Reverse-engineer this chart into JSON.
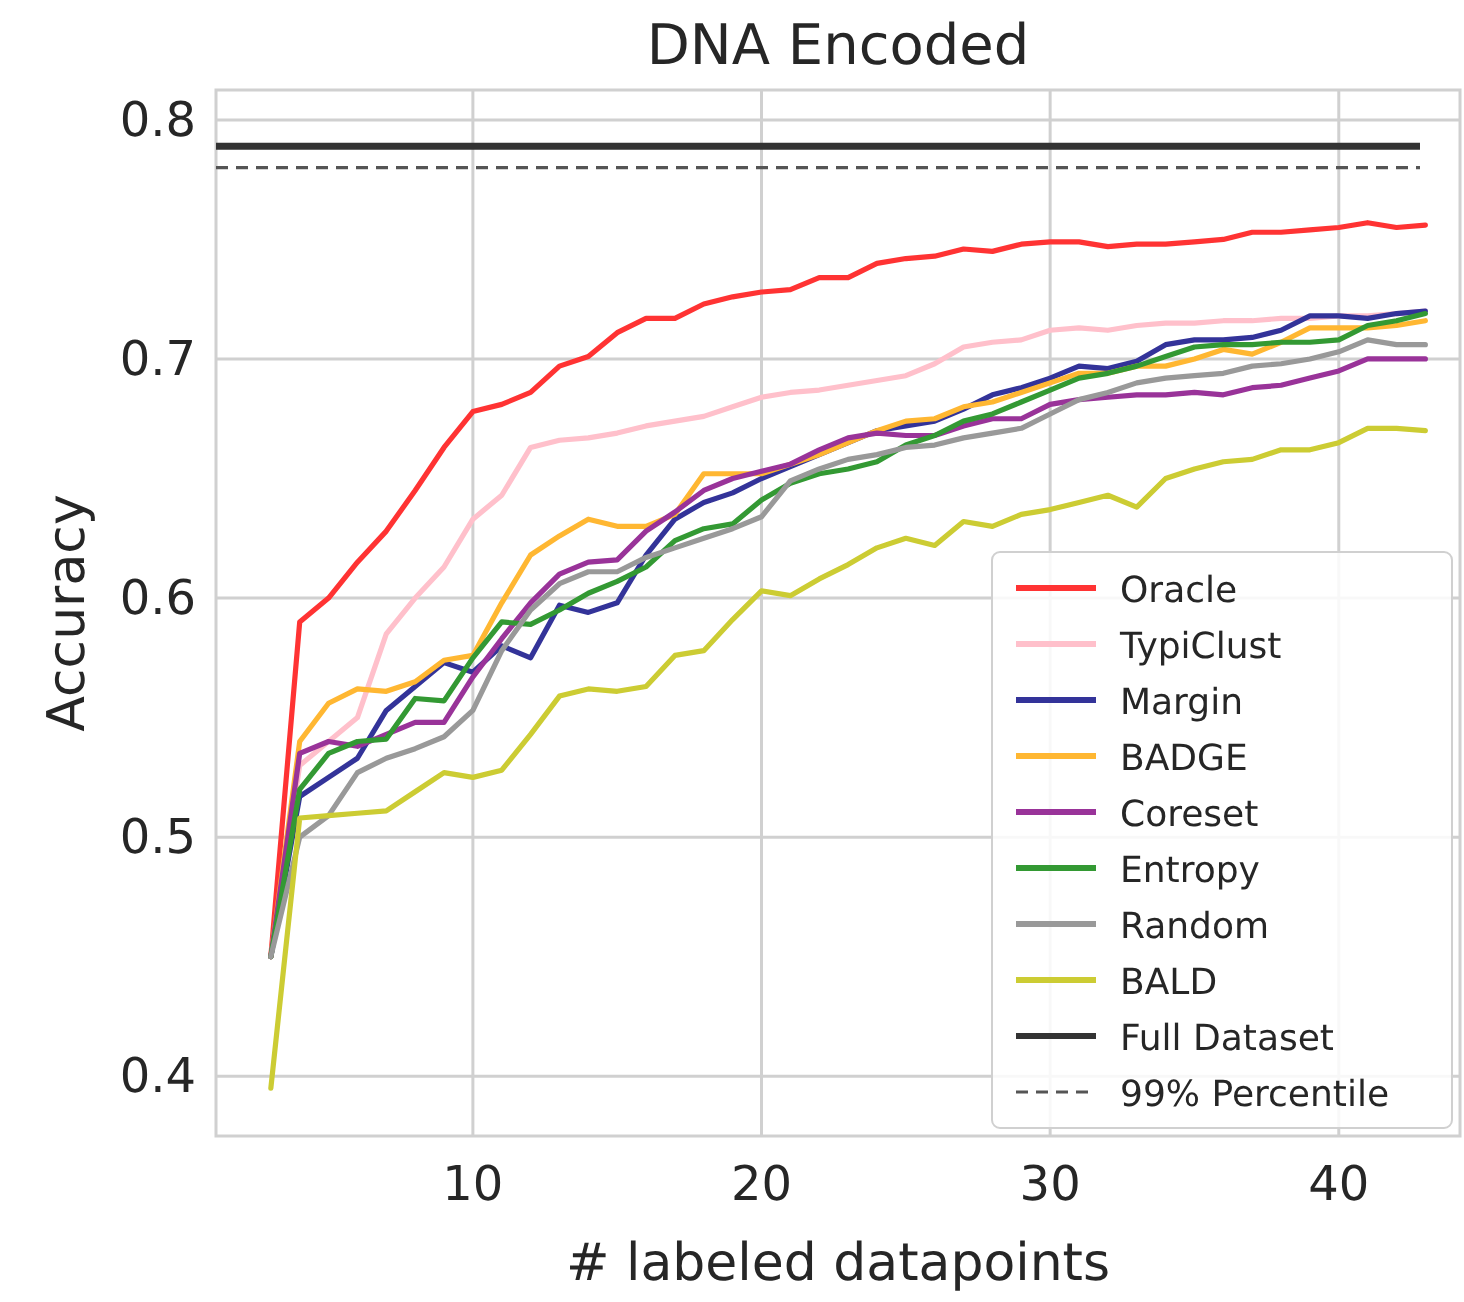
{
  "chart_data": {
    "type": "line",
    "title": "DNA Encoded",
    "xlabel": "# labeled datapoints",
    "ylabel": "Accuracy",
    "x": [
      3,
      4,
      5,
      6,
      7,
      8,
      9,
      10,
      11,
      12,
      13,
      14,
      15,
      16,
      17,
      18,
      19,
      20,
      21,
      22,
      23,
      24,
      25,
      26,
      27,
      28,
      29,
      30,
      31,
      32,
      33,
      34,
      35,
      36,
      37,
      38,
      39,
      40,
      41,
      42,
      43
    ],
    "xlim": [
      1.1,
      44.2
    ],
    "xticks": [
      10,
      20,
      30,
      40
    ],
    "ylim": [
      0.375,
      0.8125
    ],
    "yticks": [
      0.4,
      0.5,
      0.6,
      0.7,
      0.8
    ],
    "grid": true,
    "legend": "bottom right",
    "line_style": "solid",
    "marker": "none",
    "series": [
      {
        "name": "Oracle",
        "color": "#ff3333",
        "values": [
          0.45,
          0.59,
          0.6,
          0.615,
          0.628,
          0.645,
          0.663,
          0.678,
          0.681,
          0.686,
          0.697,
          0.701,
          0.711,
          0.717,
          0.717,
          0.723,
          0.726,
          0.728,
          0.729,
          0.734,
          0.734,
          0.74,
          0.742,
          0.743,
          0.746,
          0.745,
          0.748,
          0.749,
          0.749,
          0.747,
          0.748,
          0.748,
          0.749,
          0.75,
          0.753,
          0.753,
          0.754,
          0.755,
          0.757,
          0.755,
          0.756
        ]
      },
      {
        "name": "TypiClust",
        "color": "#ffc0cb",
        "values": [
          0.45,
          0.53,
          0.54,
          0.55,
          0.585,
          0.6,
          0.613,
          0.633,
          0.643,
          0.663,
          0.666,
          0.667,
          0.669,
          0.672,
          0.674,
          0.676,
          0.68,
          0.684,
          0.686,
          0.687,
          0.689,
          0.691,
          0.693,
          0.698,
          0.705,
          0.707,
          0.708,
          0.712,
          0.713,
          0.712,
          0.714,
          0.715,
          0.715,
          0.716,
          0.716,
          0.717,
          0.717,
          0.718,
          0.718,
          0.719,
          0.72
        ]
      },
      {
        "name": "Margin",
        "color": "#333399",
        "values": [
          0.45,
          0.517,
          0.525,
          0.533,
          0.553,
          0.563,
          0.573,
          0.569,
          0.58,
          0.575,
          0.597,
          0.594,
          0.598,
          0.618,
          0.633,
          0.64,
          0.644,
          0.65,
          0.655,
          0.66,
          0.665,
          0.67,
          0.672,
          0.674,
          0.679,
          0.685,
          0.688,
          0.692,
          0.697,
          0.696,
          0.699,
          0.706,
          0.708,
          0.708,
          0.709,
          0.712,
          0.718,
          0.718,
          0.717,
          0.719,
          0.72
        ]
      },
      {
        "name": "BADGE",
        "color": "#ffb732",
        "values": [
          0.45,
          0.54,
          0.556,
          0.562,
          0.561,
          0.565,
          0.574,
          0.576,
          0.598,
          0.618,
          0.626,
          0.633,
          0.63,
          0.63,
          0.635,
          0.652,
          0.652,
          0.652,
          0.656,
          0.66,
          0.665,
          0.67,
          0.674,
          0.675,
          0.68,
          0.682,
          0.686,
          0.69,
          0.694,
          0.694,
          0.697,
          0.697,
          0.7,
          0.704,
          0.702,
          0.707,
          0.713,
          0.713,
          0.713,
          0.714,
          0.716
        ]
      },
      {
        "name": "Coreset",
        "color": "#993399",
        "values": [
          0.45,
          0.535,
          0.54,
          0.538,
          0.543,
          0.548,
          0.548,
          0.567,
          0.583,
          0.598,
          0.61,
          0.615,
          0.616,
          0.628,
          0.636,
          0.645,
          0.65,
          0.653,
          0.656,
          0.662,
          0.667,
          0.669,
          0.668,
          0.668,
          0.672,
          0.675,
          0.675,
          0.681,
          0.683,
          0.684,
          0.685,
          0.685,
          0.686,
          0.685,
          0.688,
          0.689,
          0.692,
          0.695,
          0.7,
          0.7,
          0.7
        ]
      },
      {
        "name": "Entropy",
        "color": "#339933",
        "values": [
          0.45,
          0.52,
          0.535,
          0.54,
          0.541,
          0.558,
          0.557,
          0.575,
          0.59,
          0.589,
          0.595,
          0.602,
          0.607,
          0.613,
          0.624,
          0.629,
          0.631,
          0.641,
          0.648,
          0.652,
          0.654,
          0.657,
          0.664,
          0.668,
          0.674,
          0.677,
          0.682,
          0.687,
          0.692,
          0.694,
          0.697,
          0.701,
          0.705,
          0.706,
          0.706,
          0.707,
          0.707,
          0.708,
          0.714,
          0.716,
          0.719
        ]
      },
      {
        "name": "Random",
        "color": "#999999",
        "values": [
          0.45,
          0.5,
          0.509,
          0.527,
          0.533,
          0.537,
          0.542,
          0.553,
          0.578,
          0.595,
          0.606,
          0.611,
          0.611,
          0.617,
          0.621,
          0.625,
          0.629,
          0.634,
          0.649,
          0.654,
          0.658,
          0.66,
          0.663,
          0.664,
          0.667,
          0.669,
          0.671,
          0.677,
          0.683,
          0.686,
          0.69,
          0.692,
          0.693,
          0.694,
          0.697,
          0.698,
          0.7,
          0.703,
          0.708,
          0.706,
          0.706
        ]
      },
      {
        "name": "BALD",
        "color": "#cccc33",
        "values": [
          0.395,
          0.508,
          0.509,
          0.51,
          0.511,
          0.519,
          0.527,
          0.525,
          0.528,
          0.543,
          0.559,
          0.562,
          0.561,
          0.563,
          0.576,
          0.578,
          0.591,
          0.603,
          0.601,
          0.608,
          0.614,
          0.621,
          0.625,
          0.622,
          0.632,
          0.63,
          0.635,
          0.637,
          0.64,
          0.643,
          0.638,
          0.65,
          0.654,
          0.657,
          0.658,
          0.662,
          0.662,
          0.665,
          0.671,
          0.671,
          0.67
        ]
      }
    ],
    "ref_lines": [
      {
        "axis": "y",
        "value": 0.789,
        "label": "Full Dataset",
        "color": "#333333",
        "line_style": "solid"
      },
      {
        "axis": "y",
        "value": 0.78,
        "label": "99% Percentile",
        "color": "#555555",
        "line_style": "dashed"
      }
    ]
  }
}
